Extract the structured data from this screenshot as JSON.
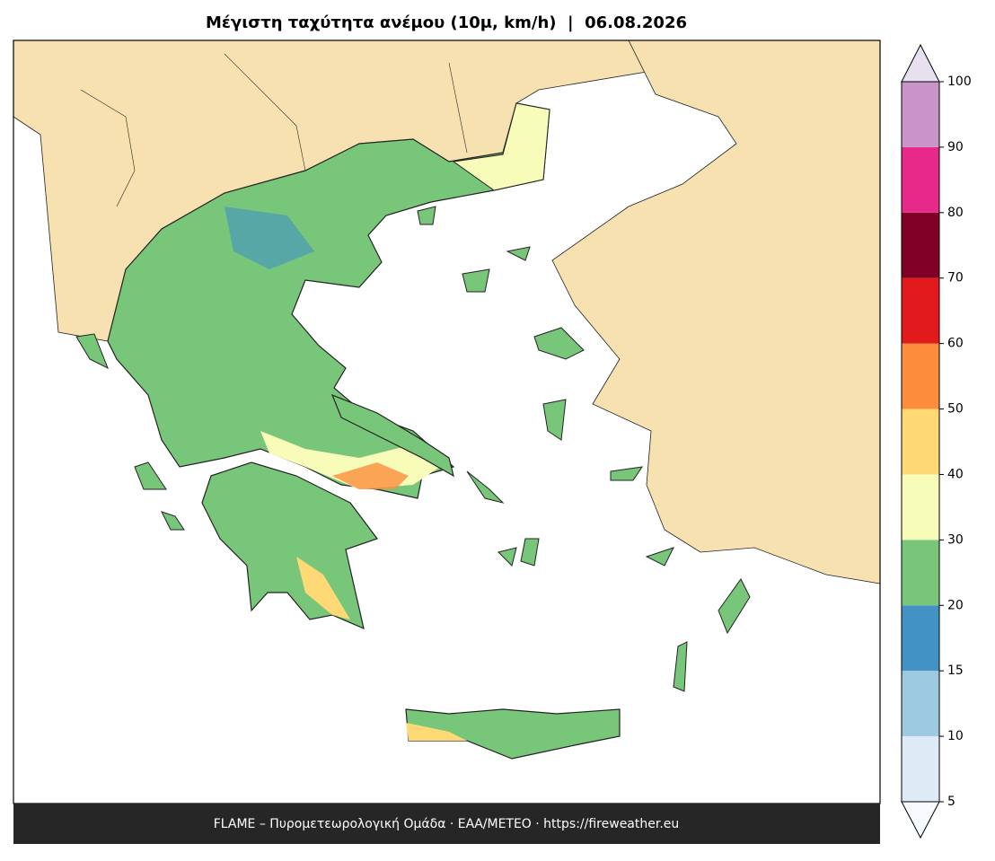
{
  "title": "Μέγιστη ταχύτητα ανέμου (10μ, km/h)  |  06.08.2026",
  "footer": "FLAME – Πυρομετεωρολογική Ομάδα · ΕΑΑ/METEO · https://fireweather.eu",
  "colorbar": {
    "ticks": [
      5,
      10,
      15,
      20,
      30,
      40,
      50,
      60,
      70,
      80,
      90,
      100
    ],
    "colors": [
      "#deebf7",
      "#9ecae1",
      "#4292c6",
      "#78c679",
      "#f7fcb9",
      "#fed976",
      "#fd8d3c",
      "#e31a1c",
      "#800026",
      "#e7298a",
      "#c994c7"
    ],
    "under_color": "#f7fbff",
    "over_color": "#e7e1ef"
  }
}
